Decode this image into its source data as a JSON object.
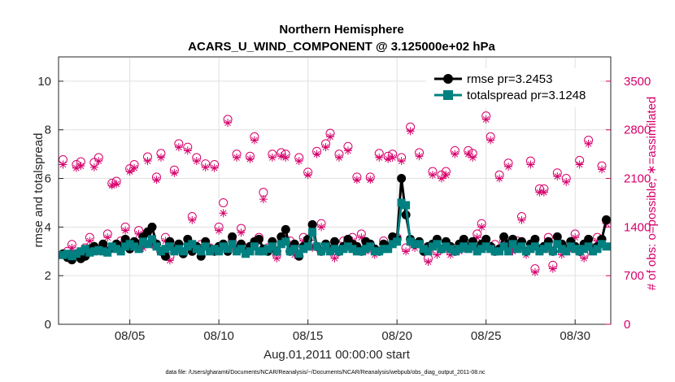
{
  "chart_data": {
    "type": "line",
    "title": "Northern Hemisphere",
    "subtitle": "ACARS_U_WIND_COMPONENT @ 3.125000e+02 hPa",
    "xlabel": "Aug.01,2011 00:00:00 start",
    "ylabel": "rmse and totalspread",
    "ylabel_right": "# of obs: o=possible; ∗=assimilated",
    "footnote": "data file: /Users/gharamti/Documents/NCAR/Reanalysis/~/Documents/NCAR/Reanalysis/webpub/obs_diag_output_2011-08.nc",
    "xlim": [
      1,
      32
    ],
    "ylim": [
      0,
      11
    ],
    "ylim_right": [
      0,
      3850
    ],
    "x_tick_positions": [
      5,
      10,
      15,
      20,
      25,
      30
    ],
    "x_tick_labels": [
      "08/05",
      "08/10",
      "08/15",
      "08/20",
      "08/25",
      "08/30"
    ],
    "y_ticks": [
      "0",
      "2",
      "4",
      "6",
      "8",
      "10"
    ],
    "y_ticks_right": [
      "0",
      "700",
      "1400",
      "2100",
      "2800",
      "3500"
    ],
    "grid": true,
    "legend_position": "top-right",
    "colors": {
      "rmse": "#000000",
      "totalspread": "#008080",
      "obs": "#d6006b"
    },
    "x": [
      1.25,
      1.5,
      1.75,
      2.0,
      2.25,
      2.5,
      2.75,
      3.0,
      3.25,
      3.5,
      3.75,
      4.0,
      4.25,
      4.5,
      4.75,
      5.0,
      5.25,
      5.5,
      5.75,
      6.0,
      6.25,
      6.5,
      6.75,
      7.0,
      7.25,
      7.5,
      7.75,
      8.0,
      8.25,
      8.5,
      8.75,
      9.0,
      9.25,
      9.5,
      9.75,
      10.0,
      10.25,
      10.5,
      10.75,
      11.0,
      11.25,
      11.5,
      11.75,
      12.0,
      12.25,
      12.5,
      12.75,
      13.0,
      13.25,
      13.5,
      13.75,
      14.0,
      14.25,
      14.5,
      14.75,
      15.0,
      15.25,
      15.5,
      15.75,
      16.0,
      16.25,
      16.5,
      16.75,
      17.0,
      17.25,
      17.5,
      17.75,
      18.0,
      18.25,
      18.5,
      18.75,
      19.0,
      19.25,
      19.5,
      19.75,
      20.0,
      20.25,
      20.5,
      20.75,
      21.0,
      21.25,
      21.5,
      21.75,
      22.0,
      22.25,
      22.5,
      22.75,
      23.0,
      23.25,
      23.5,
      23.75,
      24.0,
      24.25,
      24.5,
      24.75,
      25.0,
      25.25,
      25.5,
      25.75,
      26.0,
      26.25,
      26.5,
      26.75,
      27.0,
      27.25,
      27.5,
      27.75,
      28.0,
      28.25,
      28.5,
      28.75,
      29.0,
      29.25,
      29.5,
      29.75,
      30.0,
      30.25,
      30.5,
      30.75,
      31.0,
      31.25,
      31.5,
      31.75
    ],
    "series": [
      {
        "name": "rmse pr=3.2453",
        "values": [
          2.9,
          2.75,
          2.65,
          2.9,
          2.7,
          2.8,
          3.1,
          3.2,
          3.05,
          3.3,
          3.0,
          3.15,
          3.3,
          3.2,
          3.5,
          3.1,
          3.4,
          3.3,
          3.6,
          3.8,
          4.0,
          3.3,
          3.0,
          2.8,
          3.4,
          3.1,
          3.3,
          2.9,
          3.5,
          3.0,
          3.2,
          2.8,
          3.4,
          3.1,
          3.0,
          3.2,
          3.3,
          3.0,
          3.6,
          3.1,
          3.3,
          3.0,
          3.2,
          3.4,
          3.5,
          3.1,
          3.0,
          3.4,
          3.0,
          3.6,
          3.9,
          3.0,
          3.3,
          2.8,
          3.2,
          3.5,
          4.1,
          3.2,
          3.0,
          3.3,
          3.1,
          3.4,
          3.0,
          3.2,
          3.5,
          3.3,
          3.2,
          3.0,
          3.4,
          3.3,
          3.1,
          3.0,
          3.3,
          3.2,
          3.6,
          3.5,
          6.0,
          4.5,
          3.5,
          3.3,
          3.4,
          3.0,
          3.2,
          3.3,
          3.5,
          3.1,
          3.4,
          3.2,
          3.0,
          3.3,
          3.5,
          3.2,
          3.4,
          3.1,
          3.3,
          3.5,
          3.2,
          3.0,
          3.1,
          3.6,
          3.3,
          3.5,
          3.2,
          3.4,
          3.0,
          3.3,
          3.5,
          3.1,
          3.2,
          3.4,
          3.0,
          3.6,
          3.3,
          3.1,
          3.4,
          3.2,
          3.0,
          3.3,
          3.5,
          3.1,
          3.2,
          3.5,
          4.3
        ]
      },
      {
        "name": "totalspread pr=3.1248",
        "values": [
          2.85,
          2.9,
          2.8,
          2.9,
          3.0,
          3.1,
          2.95,
          3.0,
          3.05,
          3.0,
          2.95,
          3.2,
          3.1,
          3.0,
          3.2,
          3.3,
          3.2,
          3.1,
          3.4,
          3.3,
          3.5,
          3.2,
          3.0,
          3.1,
          3.2,
          3.0,
          3.1,
          3.0,
          3.2,
          3.3,
          3.1,
          3.0,
          3.2,
          3.0,
          3.1,
          3.0,
          3.2,
          3.1,
          3.3,
          3.0,
          3.1,
          2.9,
          3.0,
          3.2,
          3.0,
          3.0,
          3.1,
          3.2,
          3.0,
          3.3,
          3.4,
          3.0,
          3.1,
          2.9,
          3.1,
          3.2,
          3.8,
          3.2,
          3.0,
          3.2,
          3.0,
          3.1,
          3.0,
          3.1,
          3.2,
          3.1,
          3.0,
          3.0,
          3.1,
          3.2,
          3.0,
          3.0,
          3.1,
          3.1,
          3.3,
          3.4,
          5.0,
          4.9,
          3.4,
          3.3,
          3.3,
          3.1,
          3.0,
          3.2,
          3.3,
          3.1,
          3.2,
          3.1,
          3.0,
          3.1,
          3.2,
          3.1,
          3.2,
          3.0,
          3.1,
          3.2,
          3.1,
          3.0,
          3.0,
          3.2,
          3.0,
          3.3,
          3.1,
          3.2,
          3.0,
          3.1,
          3.2,
          3.0,
          3.1,
          3.2,
          3.0,
          3.3,
          3.1,
          3.0,
          3.2,
          3.1,
          3.0,
          3.1,
          3.2,
          3.0,
          3.1,
          3.3,
          3.2
        ]
      },
      {
        "name": "possible",
        "values": [
          2370,
          1050,
          1150,
          2300,
          2340,
          1100,
          1250,
          2330,
          2400,
          1100,
          1300,
          2030,
          2060,
          1200,
          1400,
          2240,
          2300,
          1350,
          1150,
          2410,
          1200,
          2120,
          2460,
          1250,
          970,
          2220,
          2600,
          1100,
          2550,
          1550,
          2400,
          1150,
          2310,
          1100,
          2300,
          1400,
          1750,
          2950,
          1200,
          2450,
          1380,
          1100,
          2420,
          2700,
          1250,
          1900,
          1100,
          2450,
          1000,
          2470,
          2450,
          1200,
          1050,
          2400,
          1250,
          2190,
          1150,
          2490,
          1450,
          2600,
          2750,
          1000,
          2450,
          1200,
          2560,
          1250,
          2120,
          1300,
          1100,
          2120,
          1050,
          2460,
          1200,
          2420,
          2450,
          1250,
          2400,
          1100,
          2840,
          1150,
          2470,
          1100,
          950,
          2200,
          1050,
          2150,
          2200,
          1050,
          2500,
          1100,
          1150,
          2500,
          2460,
          1300,
          1450,
          3000,
          2700,
          1150,
          2150,
          1200,
          2320,
          1100,
          1200,
          1550,
          1050,
          2350,
          800,
          1950,
          1950,
          1250,
          850,
          2180,
          1050,
          2100,
          1150,
          1300,
          2360,
          1000,
          2650,
          1100,
          1250,
          2280,
          1500
        ]
      },
      {
        "name": "assimilated",
        "values": [
          2300,
          1000,
          1100,
          2250,
          2280,
          1050,
          1200,
          2260,
          2350,
          1050,
          1250,
          2000,
          2020,
          1150,
          1350,
          2200,
          2250,
          1300,
          1100,
          2350,
          1150,
          2080,
          2400,
          1200,
          920,
          2180,
          2550,
          1050,
          2500,
          1500,
          2350,
          1100,
          2260,
          1050,
          2250,
          1350,
          1600,
          2900,
          1150,
          2400,
          1320,
          1050,
          2380,
          2650,
          1200,
          1800,
          1050,
          2400,
          950,
          2420,
          2400,
          1150,
          1000,
          2350,
          1200,
          2150,
          1100,
          2450,
          1400,
          2550,
          2700,
          950,
          2400,
          1150,
          2500,
          1200,
          2080,
          1250,
          1050,
          2080,
          1000,
          2400,
          1150,
          2380,
          2400,
          1200,
          2350,
          1050,
          2780,
          1100,
          2420,
          1050,
          900,
          2150,
          1000,
          2100,
          2150,
          1000,
          2450,
          1050,
          1100,
          2450,
          2400,
          1250,
          1400,
          2950,
          2650,
          1100,
          2100,
          1150,
          2270,
          1050,
          1150,
          1500,
          1000,
          2300,
          750,
          1900,
          1900,
          1200,
          800,
          2130,
          1000,
          2050,
          1100,
          1250,
          2300,
          950,
          2600,
          1050,
          1200,
          2230,
          1450
        ]
      }
    ]
  }
}
